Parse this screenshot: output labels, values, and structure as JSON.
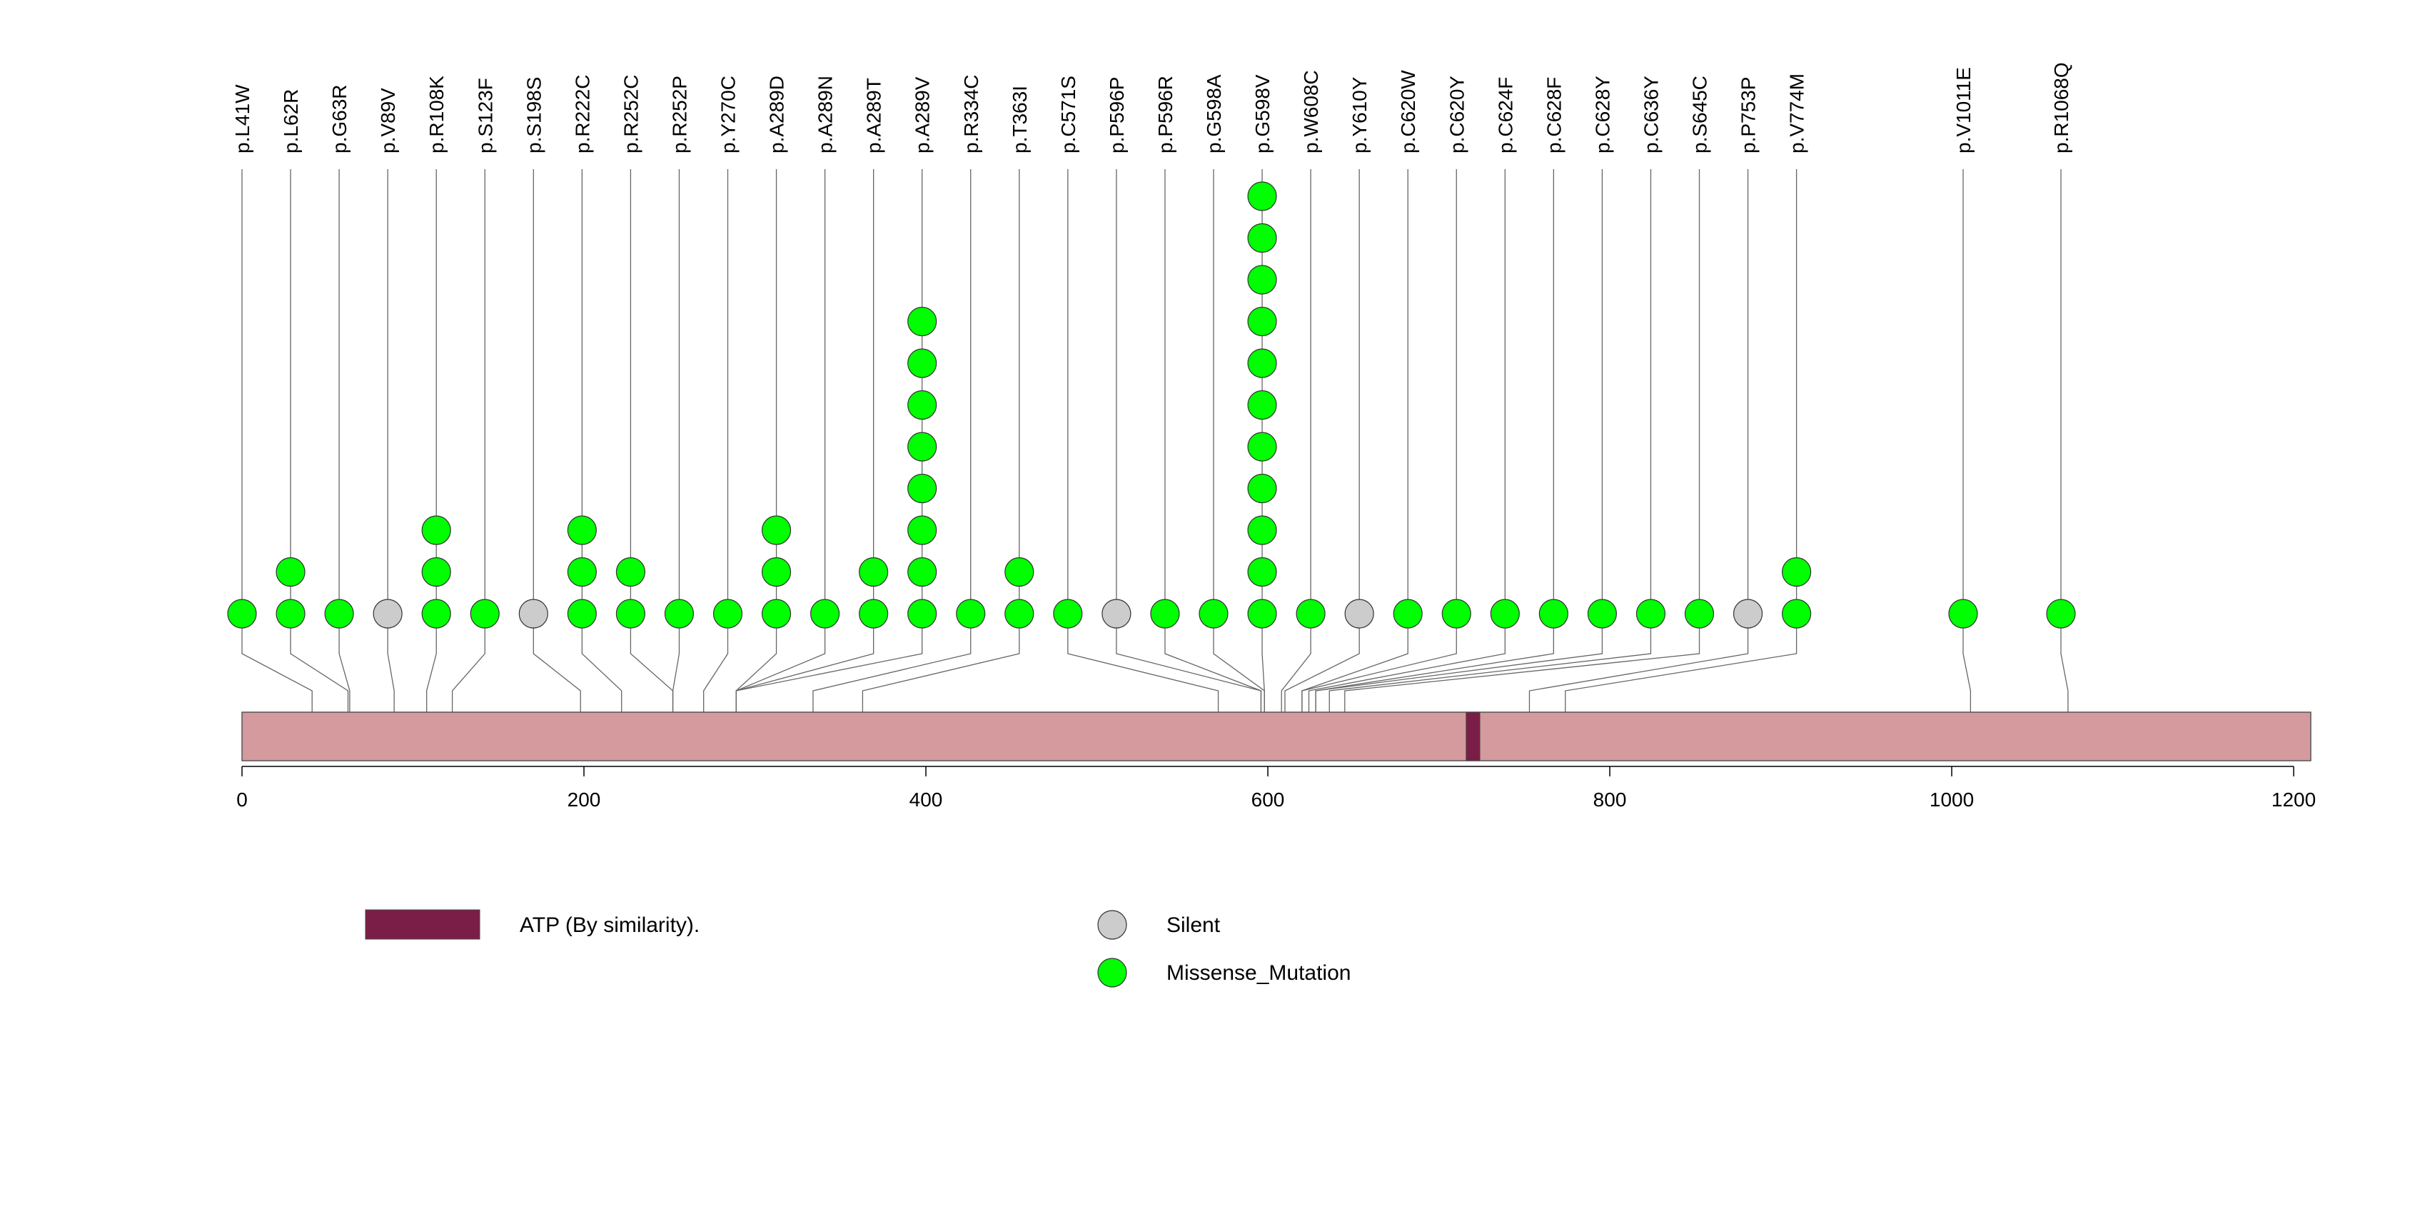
{
  "chart_data": {
    "type": "lollipop",
    "title": "",
    "xlabel": "",
    "ylabel": "",
    "protein_length": 1210,
    "xlim": [
      0,
      1210
    ],
    "x_ticks": [
      0,
      200,
      400,
      600,
      800,
      1000,
      1200
    ],
    "x_tick_labels": [
      "0",
      "200",
      "400",
      "600",
      "800",
      "1000",
      "1200"
    ],
    "colors": {
      "protein": "#d49a9d",
      "domain": "#7b1e47",
      "missense": "#00ff00",
      "silent": "#cccccc"
    },
    "domains": [
      {
        "label": "ATP (By similarity).",
        "start": 716,
        "end": 724,
        "color": "#7b1e47"
      }
    ],
    "mutations": [
      {
        "label": "p.L41W",
        "position": 41,
        "count": 1,
        "type": "Missense_Mutation"
      },
      {
        "label": "p.L62R",
        "position": 62,
        "count": 2,
        "type": "Missense_Mutation"
      },
      {
        "label": "p.G63R",
        "position": 63,
        "count": 1,
        "type": "Missense_Mutation"
      },
      {
        "label": "p.V89V",
        "position": 89,
        "count": 1,
        "type": "Silent"
      },
      {
        "label": "p.R108K",
        "position": 108,
        "count": 3,
        "type": "Missense_Mutation"
      },
      {
        "label": "p.S123F",
        "position": 123,
        "count": 1,
        "type": "Missense_Mutation"
      },
      {
        "label": "p.S198S",
        "position": 198,
        "count": 1,
        "type": "Silent"
      },
      {
        "label": "p.R222C",
        "position": 222,
        "count": 3,
        "type": "Missense_Mutation"
      },
      {
        "label": "p.R252C",
        "position": 252,
        "count": 2,
        "type": "Missense_Mutation"
      },
      {
        "label": "p.R252P",
        "position": 252,
        "count": 1,
        "type": "Missense_Mutation"
      },
      {
        "label": "p.Y270C",
        "position": 270,
        "count": 1,
        "type": "Missense_Mutation"
      },
      {
        "label": "p.A289D",
        "position": 289,
        "count": 3,
        "type": "Missense_Mutation"
      },
      {
        "label": "p.A289N",
        "position": 289,
        "count": 1,
        "type": "Missense_Mutation"
      },
      {
        "label": "p.A289T",
        "position": 289,
        "count": 2,
        "type": "Missense_Mutation"
      },
      {
        "label": "p.A289V",
        "position": 289,
        "count": 8,
        "type": "Missense_Mutation"
      },
      {
        "label": "p.R334C",
        "position": 334,
        "count": 1,
        "type": "Missense_Mutation"
      },
      {
        "label": "p.T363I",
        "position": 363,
        "count": 2,
        "type": "Missense_Mutation"
      },
      {
        "label": "p.C571S",
        "position": 571,
        "count": 1,
        "type": "Missense_Mutation"
      },
      {
        "label": "p.P596P",
        "position": 596,
        "count": 1,
        "type": "Silent"
      },
      {
        "label": "p.P596R",
        "position": 596,
        "count": 1,
        "type": "Missense_Mutation"
      },
      {
        "label": "p.G598A",
        "position": 598,
        "count": 1,
        "type": "Missense_Mutation"
      },
      {
        "label": "p.G598V",
        "position": 598,
        "count": 11,
        "type": "Missense_Mutation"
      },
      {
        "label": "p.W608C",
        "position": 608,
        "count": 1,
        "type": "Missense_Mutation"
      },
      {
        "label": "p.Y610Y",
        "position": 610,
        "count": 1,
        "type": "Silent"
      },
      {
        "label": "p.C620W",
        "position": 620,
        "count": 1,
        "type": "Missense_Mutation"
      },
      {
        "label": "p.C620Y",
        "position": 620,
        "count": 1,
        "type": "Missense_Mutation"
      },
      {
        "label": "p.C624F",
        "position": 624,
        "count": 1,
        "type": "Missense_Mutation"
      },
      {
        "label": "p.C628F",
        "position": 628,
        "count": 1,
        "type": "Missense_Mutation"
      },
      {
        "label": "p.C628Y",
        "position": 628,
        "count": 1,
        "type": "Missense_Mutation"
      },
      {
        "label": "p.C636Y",
        "position": 636,
        "count": 1,
        "type": "Missense_Mutation"
      },
      {
        "label": "p.S645C",
        "position": 645,
        "count": 1,
        "type": "Missense_Mutation"
      },
      {
        "label": "p.P753P",
        "position": 753,
        "count": 1,
        "type": "Silent"
      },
      {
        "label": "p.V774M",
        "position": 774,
        "count": 2,
        "type": "Missense_Mutation"
      },
      {
        "label": "p.V1011E",
        "position": 1011,
        "count": 1,
        "type": "Missense_Mutation"
      },
      {
        "label": "p.R1068Q",
        "position": 1068,
        "count": 1,
        "type": "Missense_Mutation"
      }
    ],
    "legend": {
      "domain_label": "ATP (By similarity).",
      "items": [
        {
          "label": "Silent",
          "type": "Silent"
        },
        {
          "label": "Missense_Mutation",
          "type": "Missense_Mutation"
        }
      ]
    }
  }
}
